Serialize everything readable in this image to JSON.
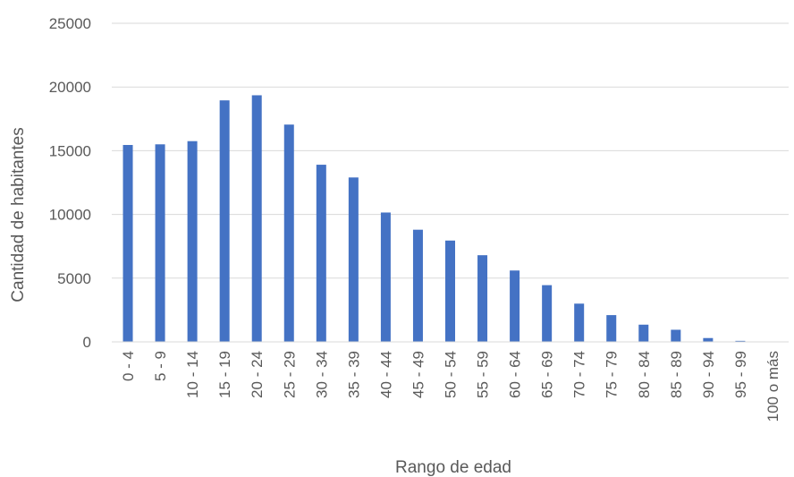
{
  "chart_data": {
    "type": "bar",
    "title": "",
    "xlabel": "Rango de edad",
    "ylabel": "Cantidad de habitantes",
    "ylim": [
      0,
      25000
    ],
    "yticks": [
      0,
      5000,
      10000,
      15000,
      20000,
      25000
    ],
    "grid": true,
    "legend": "none",
    "bar_color": "#4472C4",
    "categories": [
      "0 - 4",
      "5 - 9",
      "10 - 14",
      "15 - 19",
      "20 - 24",
      "25 - 29",
      "30 - 34",
      "35 - 39",
      "40 - 44",
      "45 - 49",
      "50 - 54",
      "55 - 59",
      "60 - 64",
      "65 - 69",
      "70 - 74",
      "75 - 79",
      "80 - 84",
      "85 - 89",
      "90 - 94",
      "95 - 99",
      "100 o más"
    ],
    "values": [
      15450,
      15500,
      15750,
      18950,
      19350,
      17050,
      13900,
      12900,
      10150,
      8800,
      7950,
      6800,
      5600,
      4450,
      3000,
      2100,
      1350,
      950,
      300,
      80,
      10
    ]
  }
}
